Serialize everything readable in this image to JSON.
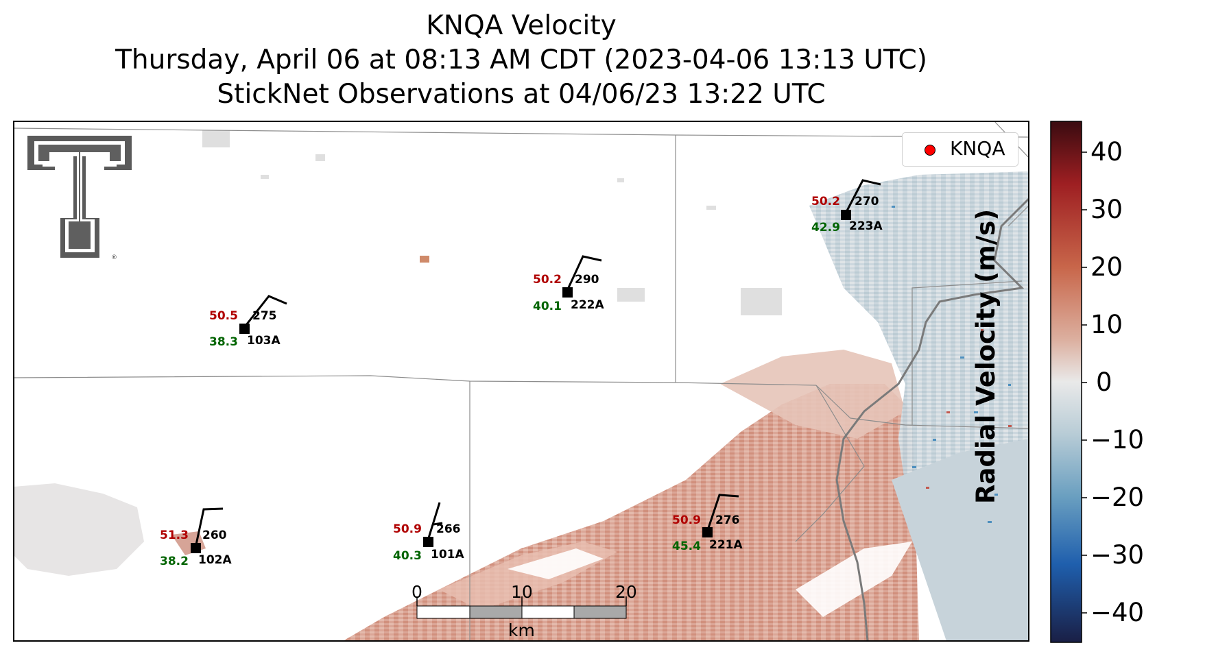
{
  "title": {
    "line1": "KNQA Velocity",
    "line2": "Thursday, April 06 at 08:13 AM CDT (2023-04-06 13:13 UTC)",
    "line3": "StickNet Observations at 04/06/23 13:22 UTC"
  },
  "legend": {
    "label": "KNQA",
    "marker_color": "#ff0000"
  },
  "colorbar": {
    "label": "Radial Velocity (m/s)",
    "range": [
      -45,
      45
    ],
    "ticks": [
      "40",
      "30",
      "20",
      "10",
      "0",
      "−10",
      "−20",
      "−30",
      "−40"
    ],
    "colors": [
      "#1a1f45",
      "#1f5fad",
      "#6a9fc0",
      "#b8ccd6",
      "#e9e9e9",
      "#dcb0a0",
      "#c8664a",
      "#9e1f22",
      "#3a0b10"
    ]
  },
  "scalebar": {
    "unit": "km",
    "labels": [
      "0",
      "10",
      "20"
    ]
  },
  "stations": [
    {
      "id": "103A",
      "temp": "50.5",
      "dew": "38.3",
      "dir": "275"
    },
    {
      "id": "222A",
      "temp": "50.2",
      "dew": "40.1",
      "dir": "290"
    },
    {
      "id": "223A",
      "temp": "50.2",
      "dew": "42.9",
      "dir": "270"
    },
    {
      "id": "102A",
      "temp": "51.3",
      "dew": "38.2",
      "dir": "260"
    },
    {
      "id": "101A",
      "temp": "50.9",
      "dew": "40.3",
      "dir": "266"
    },
    {
      "id": "221A",
      "temp": "50.9",
      "dew": "45.4",
      "dir": "276"
    }
  ],
  "logo": {
    "icon": "texas-tech-double-t-logo",
    "mark": "®"
  }
}
